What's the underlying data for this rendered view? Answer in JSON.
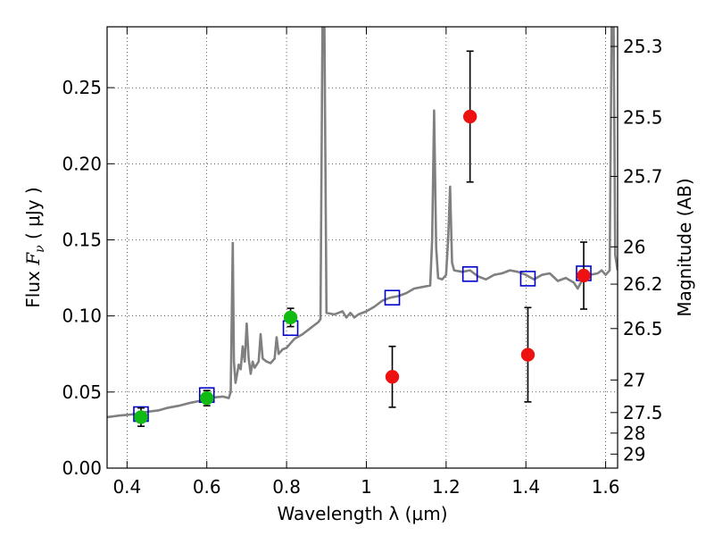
{
  "chart_data": {
    "type": "scatter",
    "xlabel": "Wavelength  λ (μm)",
    "ylabel": {
      "prefix": "Flux  ",
      "symbol": "F",
      "subscript": "ν",
      "units": " ( μJy )"
    },
    "y2label": "Magnitude (AB)",
    "xlim": [
      0.35,
      1.63
    ],
    "ylim": [
      0.0,
      0.29
    ],
    "grid": true,
    "x_ticks": [
      0.4,
      0.6,
      0.8,
      1.0,
      1.2,
      1.4,
      1.6
    ],
    "x_tick_labels": [
      "0.4",
      "0.6",
      "0.8",
      "1",
      "1.2",
      "1.4",
      "1.6"
    ],
    "y_ticks": [
      0.0,
      0.05,
      0.1,
      0.15,
      0.2,
      0.25
    ],
    "y_tick_labels": [
      "0.00",
      "0.05",
      "0.10",
      "0.15",
      "0.20",
      "0.25"
    ],
    "y2_ticks": [
      {
        "label": "25.3",
        "flux": 0.2771
      },
      {
        "label": "25.5",
        "flux": 0.2305
      },
      {
        "label": "25.7",
        "flux": 0.1917
      },
      {
        "label": "26",
        "flux": 0.1454
      },
      {
        "label": "26.2",
        "flux": 0.1209
      },
      {
        "label": "26.5",
        "flux": 0.0917
      },
      {
        "label": "27",
        "flux": 0.0579
      },
      {
        "label": "27.5",
        "flux": 0.0365
      },
      {
        "label": "28",
        "flux": 0.023
      },
      {
        "label": "29",
        "flux": 0.0092
      }
    ],
    "series": [
      {
        "kind": "line",
        "color": "#808080",
        "points": [
          [
            0.35,
            0.0335
          ],
          [
            0.38,
            0.0345
          ],
          [
            0.4,
            0.035
          ],
          [
            0.42,
            0.0355
          ],
          [
            0.45,
            0.037
          ],
          [
            0.48,
            0.038
          ],
          [
            0.5,
            0.0395
          ],
          [
            0.53,
            0.041
          ],
          [
            0.56,
            0.043
          ],
          [
            0.58,
            0.044
          ],
          [
            0.6,
            0.0455
          ],
          [
            0.62,
            0.0465
          ],
          [
            0.64,
            0.047
          ],
          [
            0.655,
            0.046
          ],
          [
            0.66,
            0.05
          ],
          [
            0.665,
            0.148
          ],
          [
            0.668,
            0.07
          ],
          [
            0.672,
            0.056
          ],
          [
            0.68,
            0.068
          ],
          [
            0.685,
            0.065
          ],
          [
            0.69,
            0.08
          ],
          [
            0.695,
            0.07
          ],
          [
            0.7,
            0.095
          ],
          [
            0.705,
            0.072
          ],
          [
            0.71,
            0.062
          ],
          [
            0.715,
            0.07
          ],
          [
            0.72,
            0.066
          ],
          [
            0.73,
            0.07
          ],
          [
            0.735,
            0.088
          ],
          [
            0.74,
            0.072
          ],
          [
            0.75,
            0.07
          ],
          [
            0.76,
            0.069
          ],
          [
            0.77,
            0.072
          ],
          [
            0.775,
            0.086
          ],
          [
            0.78,
            0.075
          ],
          [
            0.79,
            0.078
          ],
          [
            0.8,
            0.079
          ],
          [
            0.82,
            0.085
          ],
          [
            0.84,
            0.088
          ],
          [
            0.86,
            0.092
          ],
          [
            0.88,
            0.096
          ],
          [
            0.885,
            0.098
          ],
          [
            0.89,
            0.29
          ],
          [
            0.895,
            0.29
          ],
          [
            0.9,
            0.102
          ],
          [
            0.92,
            0.101
          ],
          [
            0.94,
            0.103
          ],
          [
            0.95,
            0.099
          ],
          [
            0.96,
            0.102
          ],
          [
            0.97,
            0.099
          ],
          [
            0.98,
            0.101
          ],
          [
            1.0,
            0.103
          ],
          [
            1.02,
            0.106
          ],
          [
            1.04,
            0.11
          ],
          [
            1.06,
            0.112
          ],
          [
            1.08,
            0.113
          ],
          [
            1.1,
            0.115
          ],
          [
            1.12,
            0.118
          ],
          [
            1.14,
            0.119
          ],
          [
            1.16,
            0.12
          ],
          [
            1.165,
            0.15
          ],
          [
            1.17,
            0.235
          ],
          [
            1.175,
            0.145
          ],
          [
            1.18,
            0.125
          ],
          [
            1.19,
            0.124
          ],
          [
            1.2,
            0.127
          ],
          [
            1.205,
            0.15
          ],
          [
            1.21,
            0.185
          ],
          [
            1.215,
            0.135
          ],
          [
            1.22,
            0.13
          ],
          [
            1.24,
            0.129
          ],
          [
            1.26,
            0.13
          ],
          [
            1.28,
            0.126
          ],
          [
            1.3,
            0.124
          ],
          [
            1.32,
            0.127
          ],
          [
            1.34,
            0.128
          ],
          [
            1.36,
            0.13
          ],
          [
            1.38,
            0.129
          ],
          [
            1.4,
            0.127
          ],
          [
            1.42,
            0.124
          ],
          [
            1.44,
            0.127
          ],
          [
            1.46,
            0.128
          ],
          [
            1.48,
            0.123
          ],
          [
            1.5,
            0.125
          ],
          [
            1.52,
            0.122
          ],
          [
            1.53,
            0.118
          ],
          [
            1.54,
            0.123
          ],
          [
            1.56,
            0.127
          ],
          [
            1.58,
            0.128
          ],
          [
            1.59,
            0.13
          ],
          [
            1.6,
            0.127
          ],
          [
            1.61,
            0.13
          ],
          [
            1.615,
            0.29
          ],
          [
            1.62,
            0.29
          ],
          [
            1.622,
            0.22
          ],
          [
            1.624,
            0.14
          ],
          [
            1.63,
            0.13
          ]
        ]
      },
      {
        "kind": "markers",
        "marker": "open-square",
        "color": "#0000cc",
        "points": [
          [
            0.435,
            0.0355
          ],
          [
            0.6,
            0.048
          ],
          [
            0.81,
            0.092
          ],
          [
            1.065,
            0.112
          ],
          [
            1.26,
            0.1275
          ],
          [
            1.405,
            0.1245
          ],
          [
            1.545,
            0.128
          ]
        ]
      },
      {
        "kind": "markers",
        "marker": "filled-circle",
        "color": "#11bb11",
        "points": [
          {
            "x": 0.435,
            "y": 0.0335,
            "err": 0.006
          },
          {
            "x": 0.6,
            "y": 0.046,
            "err": 0.005
          },
          {
            "x": 0.81,
            "y": 0.099,
            "err": 0.006
          }
        ]
      },
      {
        "kind": "markers",
        "marker": "filled-circle",
        "color": "#ee1111",
        "points": [
          {
            "x": 1.065,
            "y": 0.06,
            "err": 0.02
          },
          {
            "x": 1.26,
            "y": 0.231,
            "err": 0.043
          },
          {
            "x": 1.405,
            "y": 0.0745,
            "err": 0.031
          },
          {
            "x": 1.545,
            "y": 0.1265,
            "err": 0.022
          }
        ]
      }
    ]
  }
}
